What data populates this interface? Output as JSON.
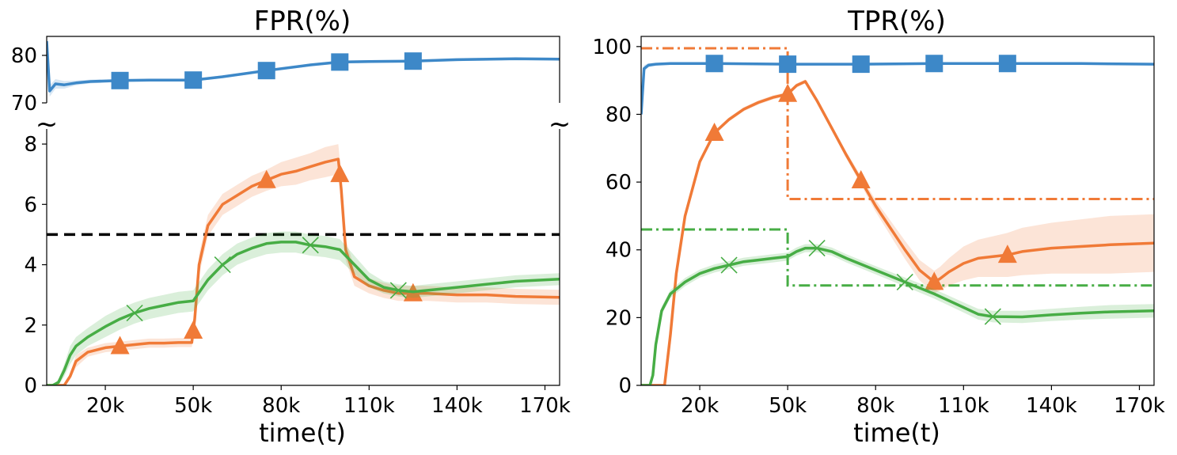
{
  "chart_data": [
    {
      "type": "line",
      "title": "FPR(%)",
      "xlabel": "time(t)",
      "ylabel": "",
      "x_ticks": [
        "20k",
        "50k",
        "80k",
        "110k",
        "140k",
        "170k"
      ],
      "x_tick_values": [
        20000,
        50000,
        80000,
        110000,
        140000,
        170000
      ],
      "xlim": [
        0,
        175000
      ],
      "broken_axis": true,
      "upper_panel": {
        "ylim": [
          70,
          84
        ],
        "y_ticks": [
          "70",
          "80"
        ],
        "y_tick_values": [
          70,
          80
        ]
      },
      "lower_panel": {
        "ylim": [
          0,
          8.5
        ],
        "y_ticks": [
          "0",
          "2",
          "4",
          "6",
          "8"
        ],
        "y_tick_values": [
          0,
          2,
          4,
          6,
          8
        ]
      },
      "break_marker": "~",
      "threshold_line": {
        "y": 5,
        "style": "dashed",
        "color": "#000000"
      },
      "series": [
        {
          "color": "#3d88c8",
          "marker": "square",
          "panel": "upper",
          "x": [
            0,
            1000,
            3000,
            6000,
            10000,
            15000,
            25000,
            35000,
            50000,
            60000,
            75000,
            90000,
            100000,
            110000,
            125000,
            140000,
            160000,
            175000
          ],
          "y": [
            83,
            72.5,
            74,
            73.8,
            74.2,
            74.5,
            74.7,
            74.8,
            74.8,
            75.5,
            76.8,
            78,
            78.6,
            78.7,
            78.8,
            79.1,
            79.3,
            79.2
          ],
          "band": [
            0,
            1.2,
            1,
            0.8,
            0.5,
            0.4,
            0.3,
            0.3,
            0.3,
            0.3,
            0.3,
            0.3,
            0.3,
            0.3,
            0.3,
            0.3,
            0.3,
            0.3
          ],
          "marker_x": [
            25000,
            50000,
            75000,
            100000,
            125000
          ]
        },
        {
          "color": "#f07a37",
          "marker": "triangle",
          "panel": "lower",
          "x": [
            0,
            3000,
            6000,
            8000,
            10000,
            14000,
            20000,
            25000,
            30000,
            35000,
            40000,
            45000,
            49500,
            50500,
            52000,
            55000,
            60000,
            65000,
            70000,
            75000,
            80000,
            85000,
            90000,
            95000,
            99500,
            100500,
            102000,
            105000,
            110000,
            115000,
            120000,
            125000,
            130000,
            140000,
            150000,
            160000,
            175000
          ],
          "y": [
            0,
            0,
            0,
            0.3,
            0.8,
            1.1,
            1.25,
            1.3,
            1.35,
            1.4,
            1.4,
            1.42,
            1.42,
            2.2,
            4,
            5.3,
            6,
            6.3,
            6.6,
            6.8,
            7,
            7.1,
            7.25,
            7.4,
            7.5,
            6.5,
            4.5,
            3.6,
            3.3,
            3.15,
            3.05,
            3.05,
            3.05,
            3,
            3,
            2.95,
            2.92
          ],
          "band": [
            0,
            0,
            0,
            0.1,
            0.2,
            0.15,
            0.15,
            0.15,
            0.15,
            0.15,
            0.15,
            0.15,
            0.15,
            0.3,
            0.35,
            0.35,
            0.35,
            0.35,
            0.35,
            0.35,
            0.4,
            0.45,
            0.45,
            0.5,
            0.5,
            0.45,
            0.35,
            0.3,
            0.25,
            0.25,
            0.25,
            0.25,
            0.25,
            0.25,
            0.25,
            0.25,
            0.25
          ],
          "marker_x": [
            25000,
            50000,
            75000,
            100000,
            125000
          ]
        },
        {
          "color": "#47ad45",
          "marker": "x",
          "panel": "lower",
          "x": [
            0,
            2000,
            4000,
            6000,
            8000,
            10000,
            14000,
            20000,
            25000,
            30000,
            35000,
            40000,
            45000,
            50000,
            55000,
            60000,
            65000,
            70000,
            75000,
            80000,
            85000,
            90000,
            95000,
            100000,
            105000,
            110000,
            115000,
            120000,
            125000,
            130000,
            140000,
            150000,
            160000,
            175000
          ],
          "y": [
            0,
            0,
            0.1,
            0.5,
            1,
            1.3,
            1.6,
            1.95,
            2.2,
            2.4,
            2.55,
            2.65,
            2.75,
            2.8,
            3.5,
            4,
            4.35,
            4.55,
            4.7,
            4.75,
            4.75,
            4.65,
            4.6,
            4.5,
            4,
            3.5,
            3.25,
            3.15,
            3.1,
            3.15,
            3.25,
            3.35,
            3.45,
            3.52
          ],
          "band": [
            0,
            0,
            0.1,
            0.2,
            0.3,
            0.3,
            0.3,
            0.35,
            0.35,
            0.35,
            0.35,
            0.35,
            0.35,
            0.35,
            0.35,
            0.35,
            0.35,
            0.35,
            0.35,
            0.35,
            0.35,
            0.35,
            0.35,
            0.35,
            0.3,
            0.25,
            0.2,
            0.2,
            0.2,
            0.2,
            0.2,
            0.2,
            0.2,
            0.2
          ],
          "marker_x": [
            30000,
            60000,
            90000,
            120000
          ]
        }
      ]
    },
    {
      "type": "line",
      "title": "TPR(%)",
      "xlabel": "time(t)",
      "ylabel": "",
      "x_ticks": [
        "20k",
        "50k",
        "80k",
        "110k",
        "140k",
        "170k"
      ],
      "x_tick_values": [
        20000,
        50000,
        80000,
        110000,
        140000,
        170000
      ],
      "xlim": [
        0,
        175000
      ],
      "ylim": [
        0,
        103
      ],
      "y_ticks": [
        "0",
        "20",
        "40",
        "60",
        "80",
        "100"
      ],
      "y_tick_values": [
        0,
        20,
        40,
        60,
        80,
        100
      ],
      "reference_lines": [
        {
          "color": "#f07a37",
          "style": "dashdot",
          "x": [
            0,
            50000,
            50000,
            175000
          ],
          "y": [
            99.5,
            99.5,
            55,
            55
          ]
        },
        {
          "color": "#47ad45",
          "style": "dashdot",
          "x": [
            0,
            50000,
            50000,
            175000
          ],
          "y": [
            46,
            46,
            29.5,
            29.5
          ]
        }
      ],
      "series": [
        {
          "color": "#3d88c8",
          "marker": "square",
          "x": [
            0,
            1000,
            2500,
            5000,
            10000,
            25000,
            50000,
            75000,
            100000,
            125000,
            150000,
            175000
          ],
          "y": [
            80,
            93.5,
            94.5,
            94.8,
            95,
            95,
            94.8,
            94.8,
            95,
            95,
            95,
            94.8
          ],
          "band": [
            0,
            1,
            0.6,
            0.4,
            0.3,
            0.3,
            0.3,
            0.3,
            0.3,
            0.3,
            0.3,
            0.3
          ],
          "marker_x": [
            25000,
            50000,
            75000,
            100000,
            125000
          ]
        },
        {
          "color": "#f07a37",
          "marker": "triangle",
          "x": [
            0,
            5000,
            8000,
            10000,
            12000,
            15000,
            20000,
            25000,
            30000,
            35000,
            40000,
            45000,
            50000,
            53000,
            56000,
            60000,
            65000,
            70000,
            75000,
            80000,
            85000,
            90000,
            95000,
            100000,
            102000,
            105000,
            110000,
            115000,
            120000,
            125000,
            130000,
            140000,
            150000,
            160000,
            175000
          ],
          "y": [
            0,
            0,
            0,
            15,
            33,
            50,
            66,
            74.5,
            78.5,
            81.5,
            83.5,
            85,
            86,
            88.5,
            89.7,
            84,
            76,
            68,
            60.5,
            53,
            46.5,
            40,
            34,
            30.5,
            31.5,
            33.5,
            36,
            37.5,
            38,
            38.5,
            39.5,
            40.5,
            41,
            41.5,
            42
          ],
          "band": [
            0,
            0,
            0,
            0.5,
            0.6,
            0.6,
            0.6,
            0.6,
            0.6,
            0.6,
            0.6,
            0.6,
            0.6,
            0.6,
            0.6,
            0.6,
            0.8,
            1,
            1.3,
            1.7,
            2.2,
            2.7,
            3,
            3.3,
            3.5,
            4,
            5,
            5.5,
            6,
            6.5,
            7,
            7.5,
            8,
            8.5,
            8.5
          ],
          "marker_x": [
            25000,
            50000,
            75000,
            100000,
            125000
          ]
        },
        {
          "color": "#47ad45",
          "marker": "x",
          "x": [
            0,
            3000,
            4000,
            5000,
            7000,
            10000,
            15000,
            20000,
            25000,
            30000,
            35000,
            40000,
            45000,
            50000,
            53000,
            56000,
            60000,
            65000,
            70000,
            80000,
            90000,
            100000,
            110000,
            115000,
            120000,
            130000,
            140000,
            150000,
            160000,
            175000
          ],
          "y": [
            0,
            0,
            3,
            12,
            22,
            27,
            30.5,
            33,
            34.5,
            35.5,
            36.5,
            37,
            37.5,
            38,
            39.5,
            40.5,
            40.5,
            39.5,
            37.5,
            34,
            30.5,
            27,
            23,
            21,
            20.3,
            20.2,
            20.8,
            21.3,
            21.7,
            22
          ],
          "band": [
            0,
            0,
            1,
            1.2,
            1.2,
            1.2,
            1.2,
            1.2,
            1.2,
            1.2,
            1.2,
            1.2,
            1.2,
            1.2,
            1.2,
            1.2,
            1.2,
            1.2,
            1.2,
            1.2,
            1.3,
            1.4,
            1.5,
            1.6,
            1.7,
            1.8,
            1.8,
            1.9,
            2,
            2
          ],
          "marker_x": [
            30000,
            60000,
            90000,
            120000
          ]
        }
      ]
    }
  ]
}
